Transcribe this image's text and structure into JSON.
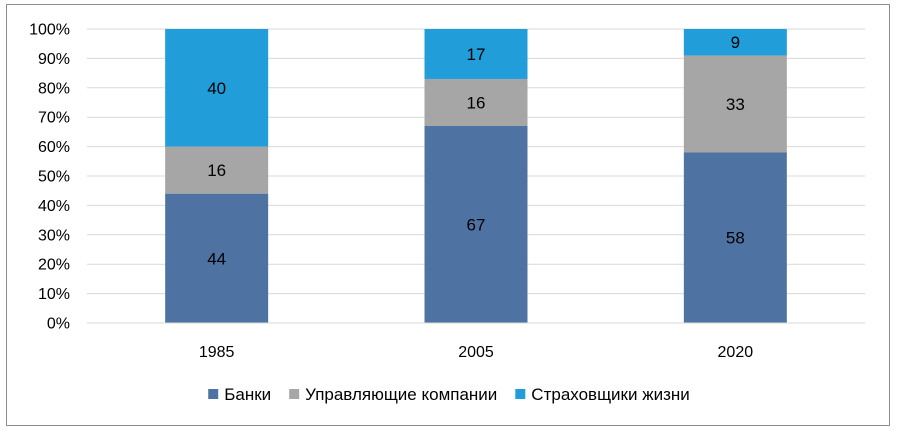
{
  "chart_data": {
    "type": "bar",
    "stacked": true,
    "percent": true,
    "categories": [
      "1985",
      "2005",
      "2020"
    ],
    "series": [
      {
        "name": "Банки",
        "color": "#4e73a2",
        "values": [
          44,
          67,
          58
        ]
      },
      {
        "name": "Управляющие компании",
        "color": "#a6a6a6",
        "values": [
          16,
          16,
          33
        ]
      },
      {
        "name": "Страховщики жизни",
        "color": "#219ed9",
        "values": [
          40,
          17,
          9
        ]
      }
    ],
    "yticks": [
      "0%",
      "10%",
      "20%",
      "30%",
      "40%",
      "50%",
      "60%",
      "70%",
      "80%",
      "90%",
      "100%"
    ],
    "ylim": [
      0,
      100
    ],
    "grid": true,
    "legend": "bottom"
  }
}
